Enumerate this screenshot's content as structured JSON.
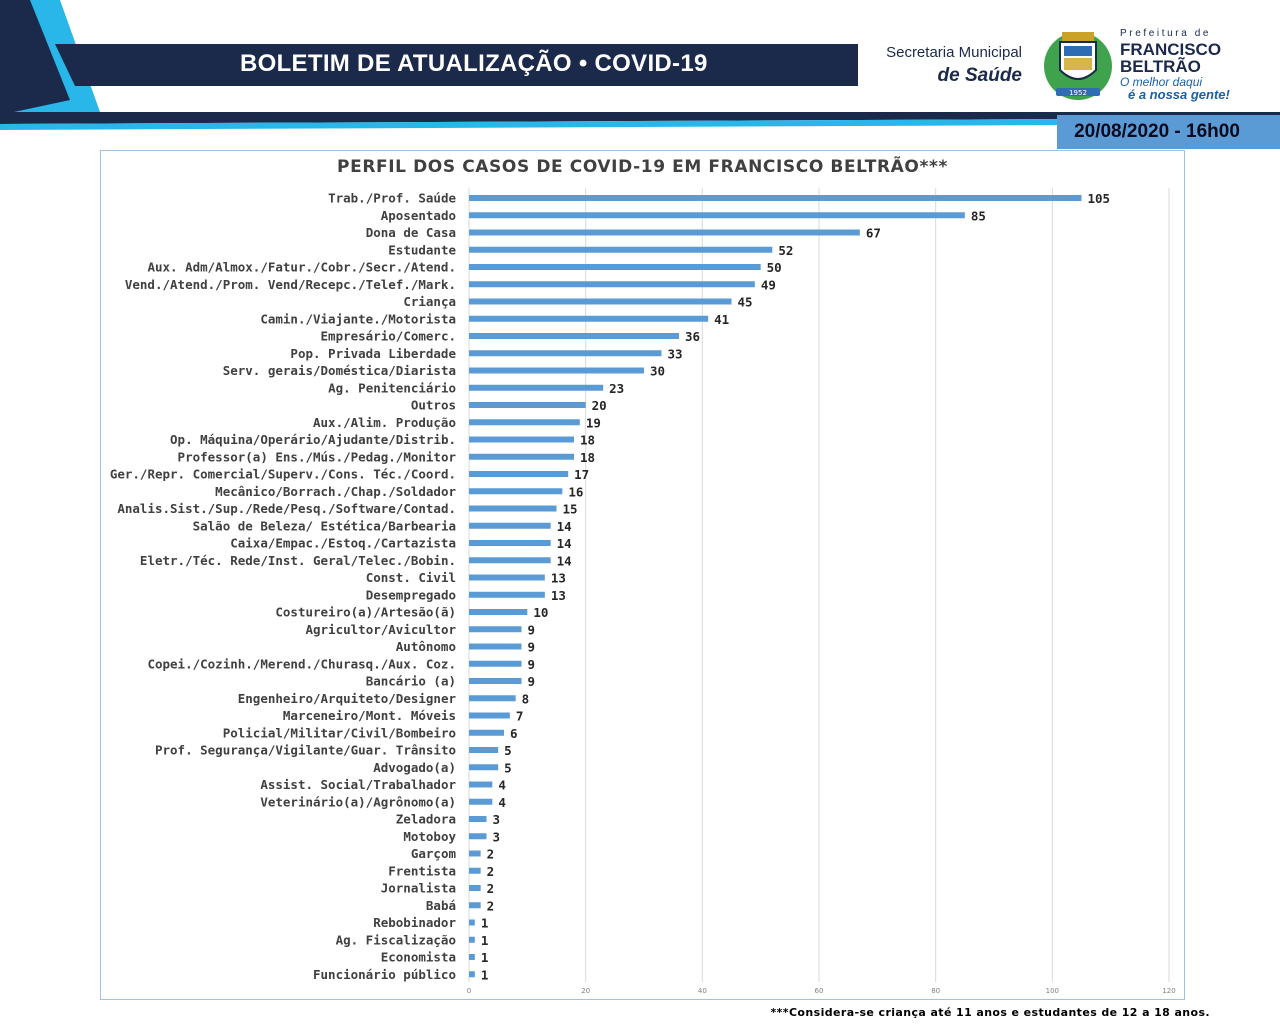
{
  "header": {
    "banner_title": "BOLETIM DE ATUALIZAÇÃO • COVID-19",
    "secretaria_line1": "Secretaria Municipal",
    "secretaria_line2": "de Saúde",
    "prefeitura_small": "Prefeitura de",
    "prefeitura_name_1": "FRANCISCO",
    "prefeitura_name_2": "BELTRÃO",
    "slogan_1": "O melhor daqui",
    "slogan_2": "é a nossa gente!",
    "date": "20/08/2020 - 16h00",
    "crest_text": "1952"
  },
  "colors": {
    "bar": "#5b9bd5",
    "banner_dark": "#1b2a4a",
    "accent_light": "#29b6e8",
    "date_badge": "#5b9bd5"
  },
  "chart_data": {
    "type": "bar",
    "orientation": "horizontal",
    "title": "PERFIL DOS CASOS DE COVID-19 EM FRANCISCO BELTRÃO***",
    "xlabel": "",
    "ylabel": "",
    "xlim": [
      0,
      120
    ],
    "x_ticks": [
      "0",
      "20",
      "40",
      "60",
      "80",
      "100",
      "120"
    ],
    "grid": true,
    "categories": [
      "Trab./Prof. Saúde",
      "Aposentado",
      "Dona de Casa",
      "Estudante",
      "Aux. Adm/Almox./Fatur./Cobr./Secr./Atend.",
      "Vend./Atend./Prom. Vend/Recepc./Telef./Mark.",
      "Criança",
      "Camin./Viajante./Motorista",
      "Empresário/Comerc.",
      "Pop. Privada Liberdade",
      "Serv. gerais/Doméstica/Diarista",
      "Ag. Penitenciário",
      "Outros",
      "Aux./Alim. Produção",
      "Op. Máquina/Operário/Ajudante/Distrib.",
      "Professor(a) Ens./Mús./Pedag./Monitor",
      "Ger./Repr. Comercial/Superv./Cons. Téc./Coord.",
      "Mecânico/Borrach./Chap./Soldador",
      "Analis.Sist./Sup./Rede/Pesq./Software/Contad.",
      "Salão de Beleza/ Estética/Barbearia",
      "Caixa/Empac./Estoq./Cartazista",
      "Eletr./Téc. Rede/Inst. Geral/Telec./Bobin.",
      "Const. Civil",
      "Desempregado",
      "Costureiro(a)/Artesão(ã)",
      "Agricultor/Avicultor",
      "Autônomo",
      "Copei./Cozinh./Merend./Churasq./Aux. Coz.",
      "Bancário (a)",
      "Engenheiro/Arquiteto/Designer",
      "Marceneiro/Mont. Móveis",
      "Policial/Militar/Civil/Bombeiro",
      "Prof. Segurança/Vigilante/Guar. Trânsito",
      "Advogado(a)",
      "Assist. Social/Trabalhador",
      "Veterinário(a)/Agrônomo(a)",
      "Zeladora",
      "Motoboy",
      "Garçom",
      "Frentista",
      "Jornalista",
      "Babá",
      "Rebobinador",
      "Ag. Fiscalização",
      "Economista",
      "Funcionário público"
    ],
    "values": [
      105,
      85,
      67,
      52,
      50,
      49,
      45,
      41,
      36,
      33,
      30,
      23,
      20,
      19,
      18,
      18,
      17,
      16,
      15,
      14,
      14,
      14,
      13,
      13,
      10,
      9,
      9,
      9,
      9,
      8,
      7,
      6,
      5,
      5,
      4,
      4,
      3,
      3,
      2,
      2,
      2,
      2,
      1,
      1,
      1,
      1
    ]
  },
  "footnote": "***Considera-se criança até 11 anos e estudantes de 12 a 18 anos."
}
